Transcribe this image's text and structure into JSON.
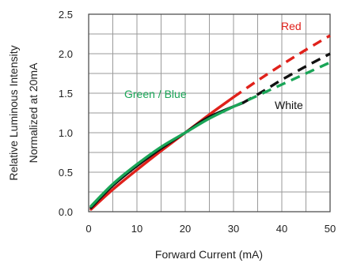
{
  "chart_data": {
    "type": "line",
    "title": "",
    "xlabel": "Forward Current (mA)",
    "ylabel": [
      "Relative Luminous Intensity",
      "Normalized at 20mA"
    ],
    "xlim": [
      0,
      50
    ],
    "ylim": [
      0,
      2.5
    ],
    "xticks": [
      "0",
      "10",
      "20",
      "30",
      "40",
      "50"
    ],
    "yticks": [
      "0.0",
      "0.5",
      "1.0",
      "1.5",
      "2.0",
      "2.5"
    ],
    "grid": true,
    "series": [
      {
        "name": "Red",
        "color": "#e0211b",
        "solid": [
          [
            0.5,
            0.03
          ],
          [
            5,
            0.28
          ],
          [
            10,
            0.53
          ],
          [
            15,
            0.77
          ],
          [
            20,
            1.0
          ],
          [
            25,
            1.23
          ],
          [
            30,
            1.45
          ]
        ],
        "dashed": [
          [
            30,
            1.45
          ],
          [
            35,
            1.66
          ],
          [
            40,
            1.86
          ],
          [
            45,
            2.05
          ],
          [
            50,
            2.23
          ]
        ]
      },
      {
        "name": "White",
        "color": "#111111",
        "solid": [
          [
            0.5,
            0.05
          ],
          [
            5,
            0.33
          ],
          [
            10,
            0.58
          ],
          [
            15,
            0.8
          ],
          [
            20,
            1.0
          ],
          [
            25,
            1.2
          ],
          [
            32,
            1.38
          ]
        ],
        "dashed": [
          [
            32,
            1.38
          ],
          [
            36,
            1.52
          ],
          [
            40,
            1.67
          ],
          [
            45,
            1.84
          ],
          [
            50,
            2.0
          ]
        ]
      },
      {
        "name": "Green / Blue",
        "color": "#1aa557",
        "solid": [
          [
            0.5,
            0.07
          ],
          [
            5,
            0.35
          ],
          [
            10,
            0.6
          ],
          [
            15,
            0.82
          ],
          [
            20,
            1.0
          ],
          [
            25,
            1.18
          ],
          [
            30,
            1.33
          ]
        ],
        "dashed": [
          [
            30,
            1.33
          ],
          [
            35,
            1.47
          ],
          [
            40,
            1.61
          ],
          [
            45,
            1.75
          ],
          [
            50,
            1.89
          ]
        ]
      }
    ]
  }
}
